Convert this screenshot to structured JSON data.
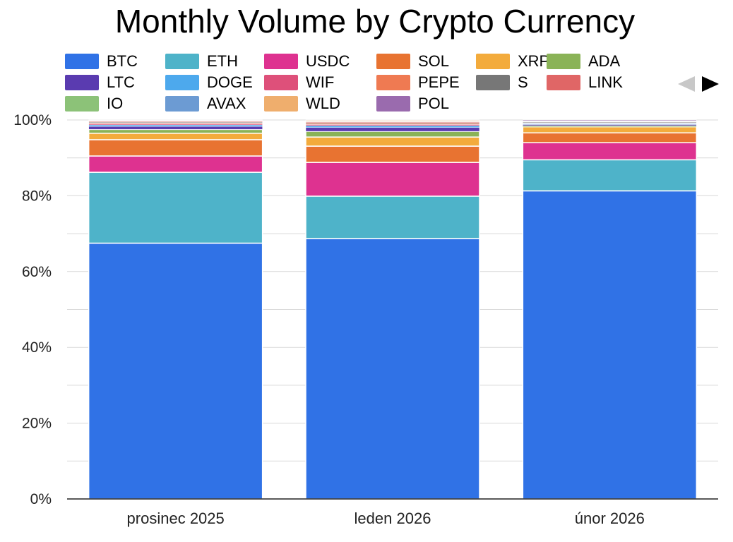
{
  "chart_data": {
    "type": "bar",
    "stacked": "percent",
    "title": "Monthly Volume by Crypto Currency",
    "xlabel": "",
    "ylabel": "",
    "ylim": [
      0,
      100
    ],
    "yticks": [
      "0%",
      "20%",
      "40%",
      "60%",
      "80%",
      "100%"
    ],
    "grid": true,
    "legend_position": "top",
    "categories": [
      "prosinec 2025",
      "leden 2026",
      "únor 2026"
    ],
    "series": [
      {
        "name": "BTC",
        "color": "#3072E6",
        "values": [
          67.5,
          68.7,
          81.3
        ]
      },
      {
        "name": "ETH",
        "color": "#4EB3C9",
        "values": [
          18.7,
          11.2,
          8.2
        ]
      },
      {
        "name": "USDC",
        "color": "#DE3290",
        "values": [
          4.3,
          8.9,
          4.5
        ]
      },
      {
        "name": "SOL",
        "color": "#E87331",
        "values": [
          4.3,
          4.3,
          2.6
        ]
      },
      {
        "name": "XRP",
        "color": "#F3AB3C",
        "values": [
          1.7,
          2.4,
          1.6
        ]
      },
      {
        "name": "ADA",
        "color": "#8AB357",
        "values": [
          1.0,
          1.5,
          0.3
        ]
      },
      {
        "name": "LTC",
        "color": "#5A3BB0",
        "values": [
          0.8,
          1.0,
          0.3
        ]
      },
      {
        "name": "DOGE",
        "color": "#4DA9ED",
        "values": [
          0.4,
          0.5,
          0.2
        ]
      },
      {
        "name": "WIF",
        "color": "#DE507A",
        "values": [
          0.3,
          0.3,
          0.1
        ]
      },
      {
        "name": "PEPE",
        "color": "#EF7A52",
        "values": [
          0.2,
          0.3,
          0.1
        ]
      },
      {
        "name": "S",
        "color": "#777777",
        "values": [
          0.2,
          0.2,
          0.2
        ]
      },
      {
        "name": "LINK",
        "color": "#E06666",
        "values": [
          0.2,
          0.2,
          0.1
        ]
      },
      {
        "name": "IO",
        "color": "#8CC278",
        "values": [
          0.1,
          0.1,
          0.1
        ]
      },
      {
        "name": "AVAX",
        "color": "#6C9BD3",
        "values": [
          0.1,
          0.1,
          0.1
        ]
      },
      {
        "name": "WLD",
        "color": "#EFAE6D",
        "values": [
          0.1,
          0.2,
          0.1
        ]
      },
      {
        "name": "POL",
        "color": "#9A6BAE",
        "values": [
          0.1,
          0.1,
          0.2
        ]
      }
    ]
  }
}
